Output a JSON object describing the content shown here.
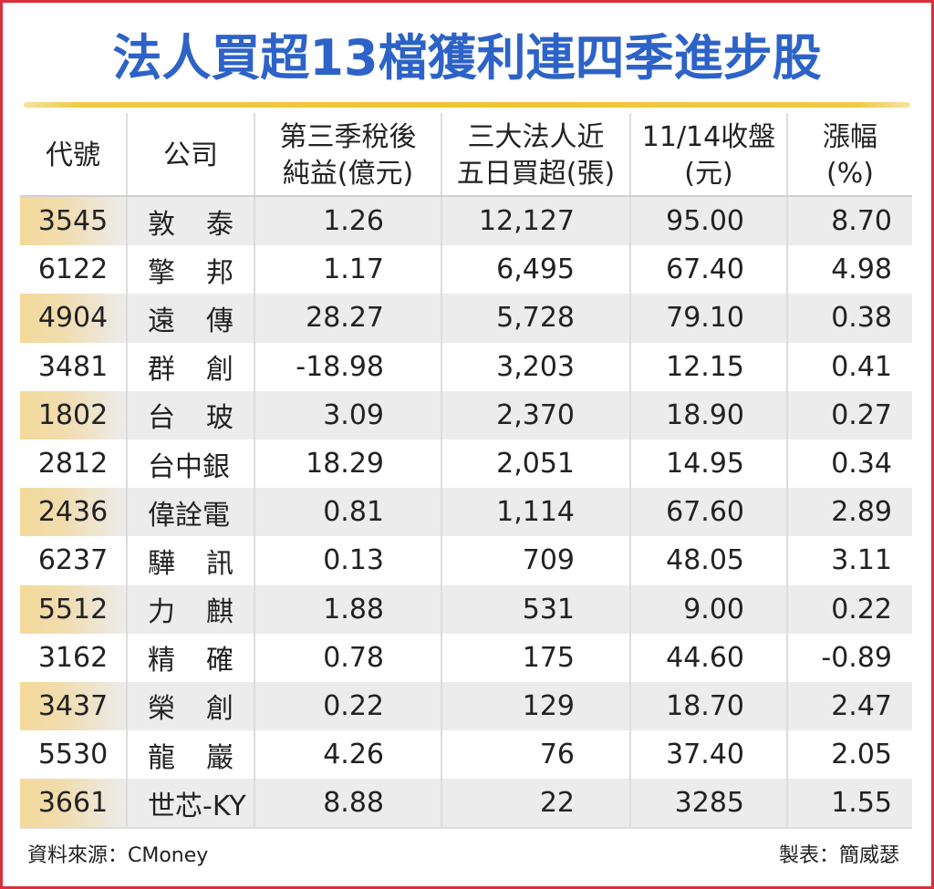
{
  "title": "法人買超13檔獲利連四季進步股",
  "headers": {
    "code": "代號",
    "company": "公司",
    "profit": [
      "第三季稅後",
      "純益(億元)"
    ],
    "buy": [
      "三大法人近",
      "五日買超(張)"
    ],
    "close": [
      "11/14收盤",
      "(元)"
    ],
    "change": [
      "漲幅",
      "(%)"
    ]
  },
  "rows": [
    {
      "code": "3545",
      "company": [
        "敦",
        "泰"
      ],
      "profit": "1.26",
      "buy": "12,127",
      "close": "95.00",
      "change": "8.70"
    },
    {
      "code": "6122",
      "company": [
        "擎",
        "邦"
      ],
      "profit": "1.17",
      "buy": "6,495",
      "close": "67.40",
      "change": "4.98"
    },
    {
      "code": "4904",
      "company": [
        "遠",
        "傳"
      ],
      "profit": "28.27",
      "buy": "5,728",
      "close": "79.10",
      "change": "0.38"
    },
    {
      "code": "3481",
      "company": [
        "群",
        "創"
      ],
      "profit": "-18.98",
      "buy": "3,203",
      "close": "12.15",
      "change": "0.41"
    },
    {
      "code": "1802",
      "company": [
        "台",
        "玻"
      ],
      "profit": "3.09",
      "buy": "2,370",
      "close": "18.90",
      "change": "0.27"
    },
    {
      "code": "2812",
      "company": [
        "台中銀"
      ],
      "profit": "18.29",
      "buy": "2,051",
      "close": "14.95",
      "change": "0.34"
    },
    {
      "code": "2436",
      "company": [
        "偉詮電"
      ],
      "profit": "0.81",
      "buy": "1,114",
      "close": "67.60",
      "change": "2.89"
    },
    {
      "code": "6237",
      "company": [
        "驊",
        "訊"
      ],
      "profit": "0.13",
      "buy": "709",
      "close": "48.05",
      "change": "3.11"
    },
    {
      "code": "5512",
      "company": [
        "力",
        "麒"
      ],
      "profit": "1.88",
      "buy": "531",
      "close": "9.00",
      "change": "0.22"
    },
    {
      "code": "3162",
      "company": [
        "精",
        "確"
      ],
      "profit": "0.78",
      "buy": "175",
      "close": "44.60",
      "change": "-0.89"
    },
    {
      "code": "3437",
      "company": [
        "榮",
        "創"
      ],
      "profit": "0.22",
      "buy": "129",
      "close": "18.70",
      "change": "2.47"
    },
    {
      "code": "5530",
      "company": [
        "龍",
        "巖"
      ],
      "profit": "4.26",
      "buy": "76",
      "close": "37.40",
      "change": "2.05"
    },
    {
      "code": "3661",
      "company": [
        "世芯-KY"
      ],
      "profit": "8.88",
      "buy": "22",
      "close": "3285",
      "change": "1.55"
    }
  ],
  "footer": {
    "source": "資料來源：CMoney",
    "maker": "製表：簡威瑟"
  },
  "colors": {
    "frame": "#d9303a",
    "title": "#2d63c8",
    "rule": "#eec330",
    "stripe": "#ececec",
    "code_highlight": "#f4d99a"
  }
}
